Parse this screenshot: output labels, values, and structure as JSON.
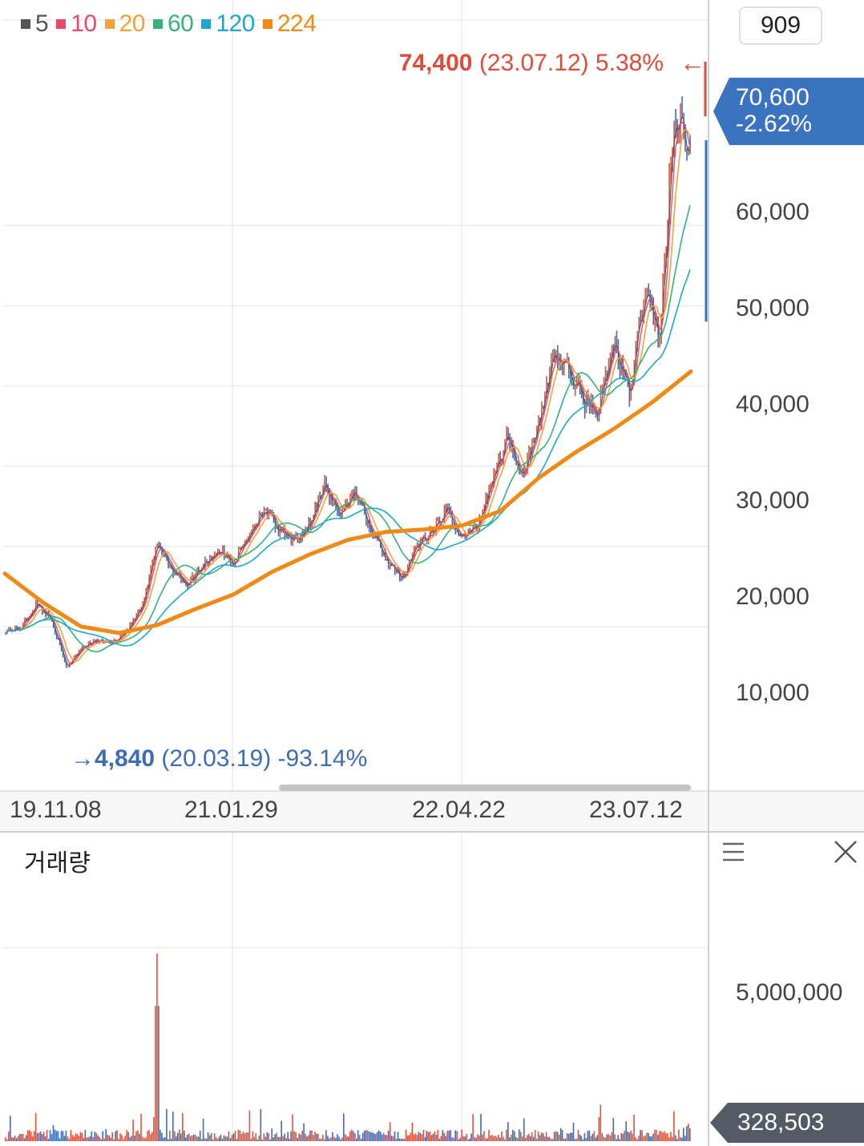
{
  "legend": [
    {
      "label": "5",
      "color": "#555555"
    },
    {
      "label": "10",
      "color": "#e84a6f"
    },
    {
      "label": "20",
      "color": "#f0a33b"
    },
    {
      "label": "60",
      "color": "#35b27c"
    },
    {
      "label": "120",
      "color": "#1da7cf"
    },
    {
      "label": "224",
      "color": "#ef8a17"
    }
  ],
  "count_value": "909",
  "max_annotation": {
    "price": "74,400",
    "date": "(23.07.12)",
    "pct": "5.38%",
    "arrow": "←"
  },
  "min_annotation": {
    "arrow": "→",
    "price": "4,840",
    "date": "(20.03.19)",
    "pct": "-93.14%"
  },
  "current_price": {
    "price": "70,600",
    "change": "-2.62%",
    "color": "#3a74c0"
  },
  "y_labels": [
    "70,600",
    "60,000",
    "50,000",
    "40,000",
    "30,000",
    "20,000",
    "10,000"
  ],
  "x_labels": [
    "19.11.08",
    "21.01.29",
    "22.04.22",
    "23.07.12"
  ],
  "volume": {
    "title": "거래량",
    "y_label": "5,000,000",
    "current": "328,503",
    "tag_color": "#555b66"
  },
  "colors": {
    "up": "#e0533a",
    "down": "#3d6db5",
    "ma224": "#ef8a17"
  },
  "chart_data": {
    "type": "line",
    "series": [
      {
        "name": "price",
        "points": [
          [
            "19.11.08",
            9500
          ],
          [
            "19.12",
            9800
          ],
          [
            "20.01",
            12800
          ],
          [
            "20.02",
            11000
          ],
          [
            "20.03.19",
            4840
          ],
          [
            "20.04",
            7500
          ],
          [
            "20.05",
            8200
          ],
          [
            "20.06",
            8000
          ],
          [
            "20.07",
            9600
          ],
          [
            "20.08",
            12500
          ],
          [
            "20.09",
            20500
          ],
          [
            "20.10",
            17000
          ],
          [
            "20.11",
            15200
          ],
          [
            "20.12",
            17800
          ],
          [
            "21.01.29",
            19500
          ],
          [
            "21.02",
            18000
          ],
          [
            "21.03",
            21500
          ],
          [
            "21.04",
            24800
          ],
          [
            "21.05",
            21800
          ],
          [
            "21.06",
            20600
          ],
          [
            "21.07",
            23000
          ],
          [
            "21.08",
            27500
          ],
          [
            "21.09",
            24000
          ],
          [
            "21.10",
            27000
          ],
          [
            "21.11",
            22000
          ],
          [
            "21.12",
            18500
          ],
          [
            "22.01",
            15800
          ],
          [
            "22.02",
            20000
          ],
          [
            "22.03",
            21500
          ],
          [
            "22.04.22",
            24500
          ],
          [
            "22.05",
            21000
          ],
          [
            "22.06",
            22500
          ],
          [
            "22.07",
            28500
          ],
          [
            "22.08",
            33700
          ],
          [
            "22.09",
            29000
          ],
          [
            "22.10",
            34500
          ],
          [
            "22.11",
            44000
          ],
          [
            "22.12",
            42000
          ],
          [
            "23.01",
            38000
          ],
          [
            "23.02",
            37000
          ],
          [
            "23.03",
            45500
          ],
          [
            "23.04",
            38500
          ],
          [
            "23.05",
            52000
          ],
          [
            "23.06",
            46000
          ],
          [
            "23.07.12",
            74400
          ],
          [
            "23.07",
            70600
          ]
        ]
      },
      {
        "name": "224",
        "points": [
          [
            "19.11.08",
            16600
          ],
          [
            "20.01",
            13000
          ],
          [
            "20.03",
            10000
          ],
          [
            "20.05",
            9200
          ],
          [
            "20.08",
            10200
          ],
          [
            "20.11",
            12200
          ],
          [
            "21.01.29",
            14000
          ],
          [
            "21.04",
            16800
          ],
          [
            "21.07",
            19000
          ],
          [
            "21.10",
            20800
          ],
          [
            "22.01",
            21800
          ],
          [
            "22.04.22",
            22100
          ],
          [
            "22.07",
            22600
          ],
          [
            "22.09",
            24400
          ],
          [
            "22.11",
            28500
          ],
          [
            "23.01",
            31800
          ],
          [
            "23.03",
            34700
          ],
          [
            "23.05",
            38000
          ],
          [
            "23.07",
            41800
          ]
        ]
      }
    ],
    "y_ticks": [
      10000,
      20000,
      30000,
      40000,
      50000,
      60000
    ],
    "ylim": [
      1500,
      73600
    ],
    "volume_ylim": [
      0,
      6500000
    ],
    "volume_ticks": [
      5000000
    ],
    "volume_peak": {
      "date": "20.09",
      "value": 4850000
    },
    "volume_current": 328503,
    "grid": true
  }
}
